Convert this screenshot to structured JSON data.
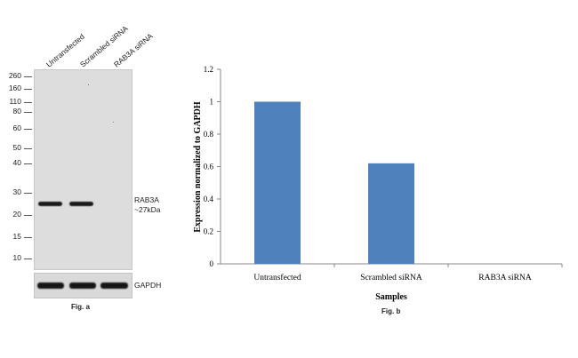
{
  "blot": {
    "lanes": [
      "Untransfected",
      "Scrambled siRNA",
      "RAB3A siRNA"
    ],
    "markers": [
      "260",
      "160",
      "110",
      "80",
      "60",
      "50",
      "40",
      "30",
      "20",
      "15",
      "10"
    ],
    "band_label_line1": "RAB3A",
    "band_label_line2": "~27kDa",
    "loading_label": "GAPDH",
    "caption": "Fig. a"
  },
  "chart_data": {
    "type": "bar",
    "categories": [
      "Untransfected",
      "Scrambled siRNA",
      "RAB3A siRNA"
    ],
    "values": [
      1.0,
      0.62,
      0.0
    ],
    "xlabel": "Samples",
    "ylabel": "Expression normalized to GAPDH",
    "ylim": [
      0,
      1.2
    ],
    "yticks": [
      "0",
      "0.2",
      "0.4",
      "0.6",
      "0.8",
      "1",
      "1.2"
    ],
    "bar_color": "#4f81bd",
    "grid": false,
    "legend": "none",
    "caption": "Fig. b"
  }
}
